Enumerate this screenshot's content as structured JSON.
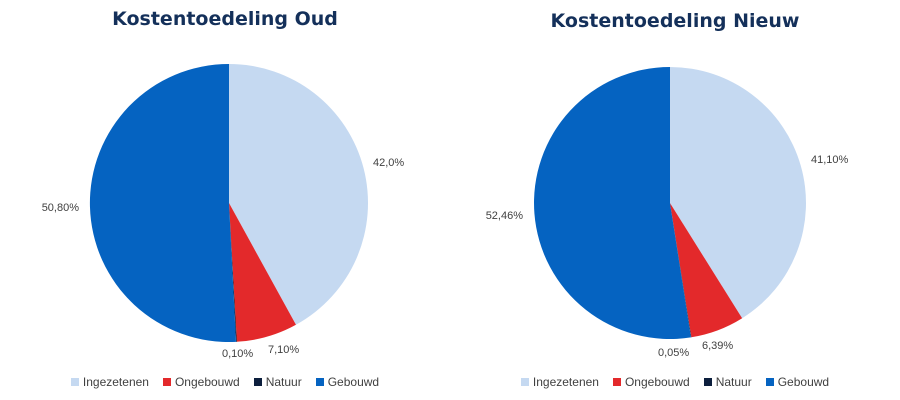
{
  "chart_data": [
    {
      "type": "pie",
      "title": "Kostentoedeling Oud",
      "categories": [
        "Ingezetenen",
        "Ongebouwd",
        "Natuur",
        "Gebouwd"
      ],
      "values": [
        42.0,
        7.1,
        0.1,
        50.8
      ],
      "data_labels": [
        "42,0%",
        "7,10%",
        "0,10%",
        "50,80%"
      ],
      "colors": [
        "#c5d9f1",
        "#e3292b",
        "#0c1f3d",
        "#0563c1"
      ],
      "legend": "bottom"
    },
    {
      "type": "pie",
      "title": "Kostentoedeling Nieuw",
      "categories": [
        "Ingezetenen",
        "Ongebouwd",
        "Natuur",
        "Gebouwd"
      ],
      "values": [
        41.1,
        6.39,
        0.05,
        52.46
      ],
      "data_labels": [
        "41,10%",
        "6,39%",
        "0,05%",
        "52,46%"
      ],
      "colors": [
        "#c5d9f1",
        "#e3292b",
        "#0c1f3d",
        "#0563c1"
      ],
      "legend": "bottom"
    }
  ]
}
